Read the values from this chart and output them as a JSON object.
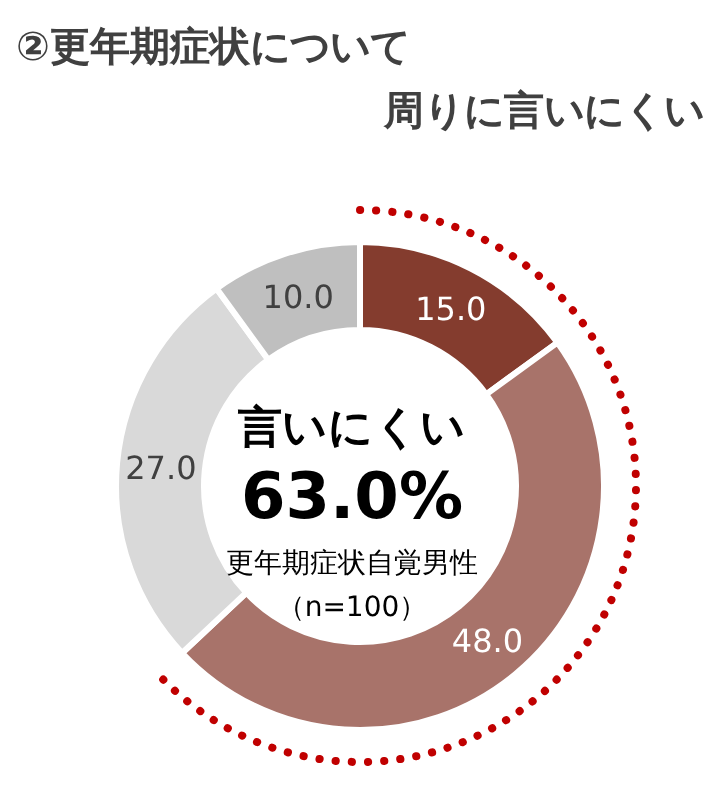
{
  "chart_data": {
    "type": "donut",
    "title": "②更年期症状について",
    "subtitle": "周りに言いにくい",
    "categories": [
      null,
      null,
      null,
      null
    ],
    "values": [
      15,
      48,
      27,
      10
    ],
    "colors": [
      "#843c2e",
      "#a8736a",
      "#d9d9d9",
      "#bfbfbf"
    ],
    "value_labels": [
      "15.0",
      "48.0",
      "27.0",
      "10.0"
    ],
    "annotations": [
      "言いにくい",
      "63.0%",
      "更年期症状自覚男性",
      "（n=100）"
    ]
  }
}
